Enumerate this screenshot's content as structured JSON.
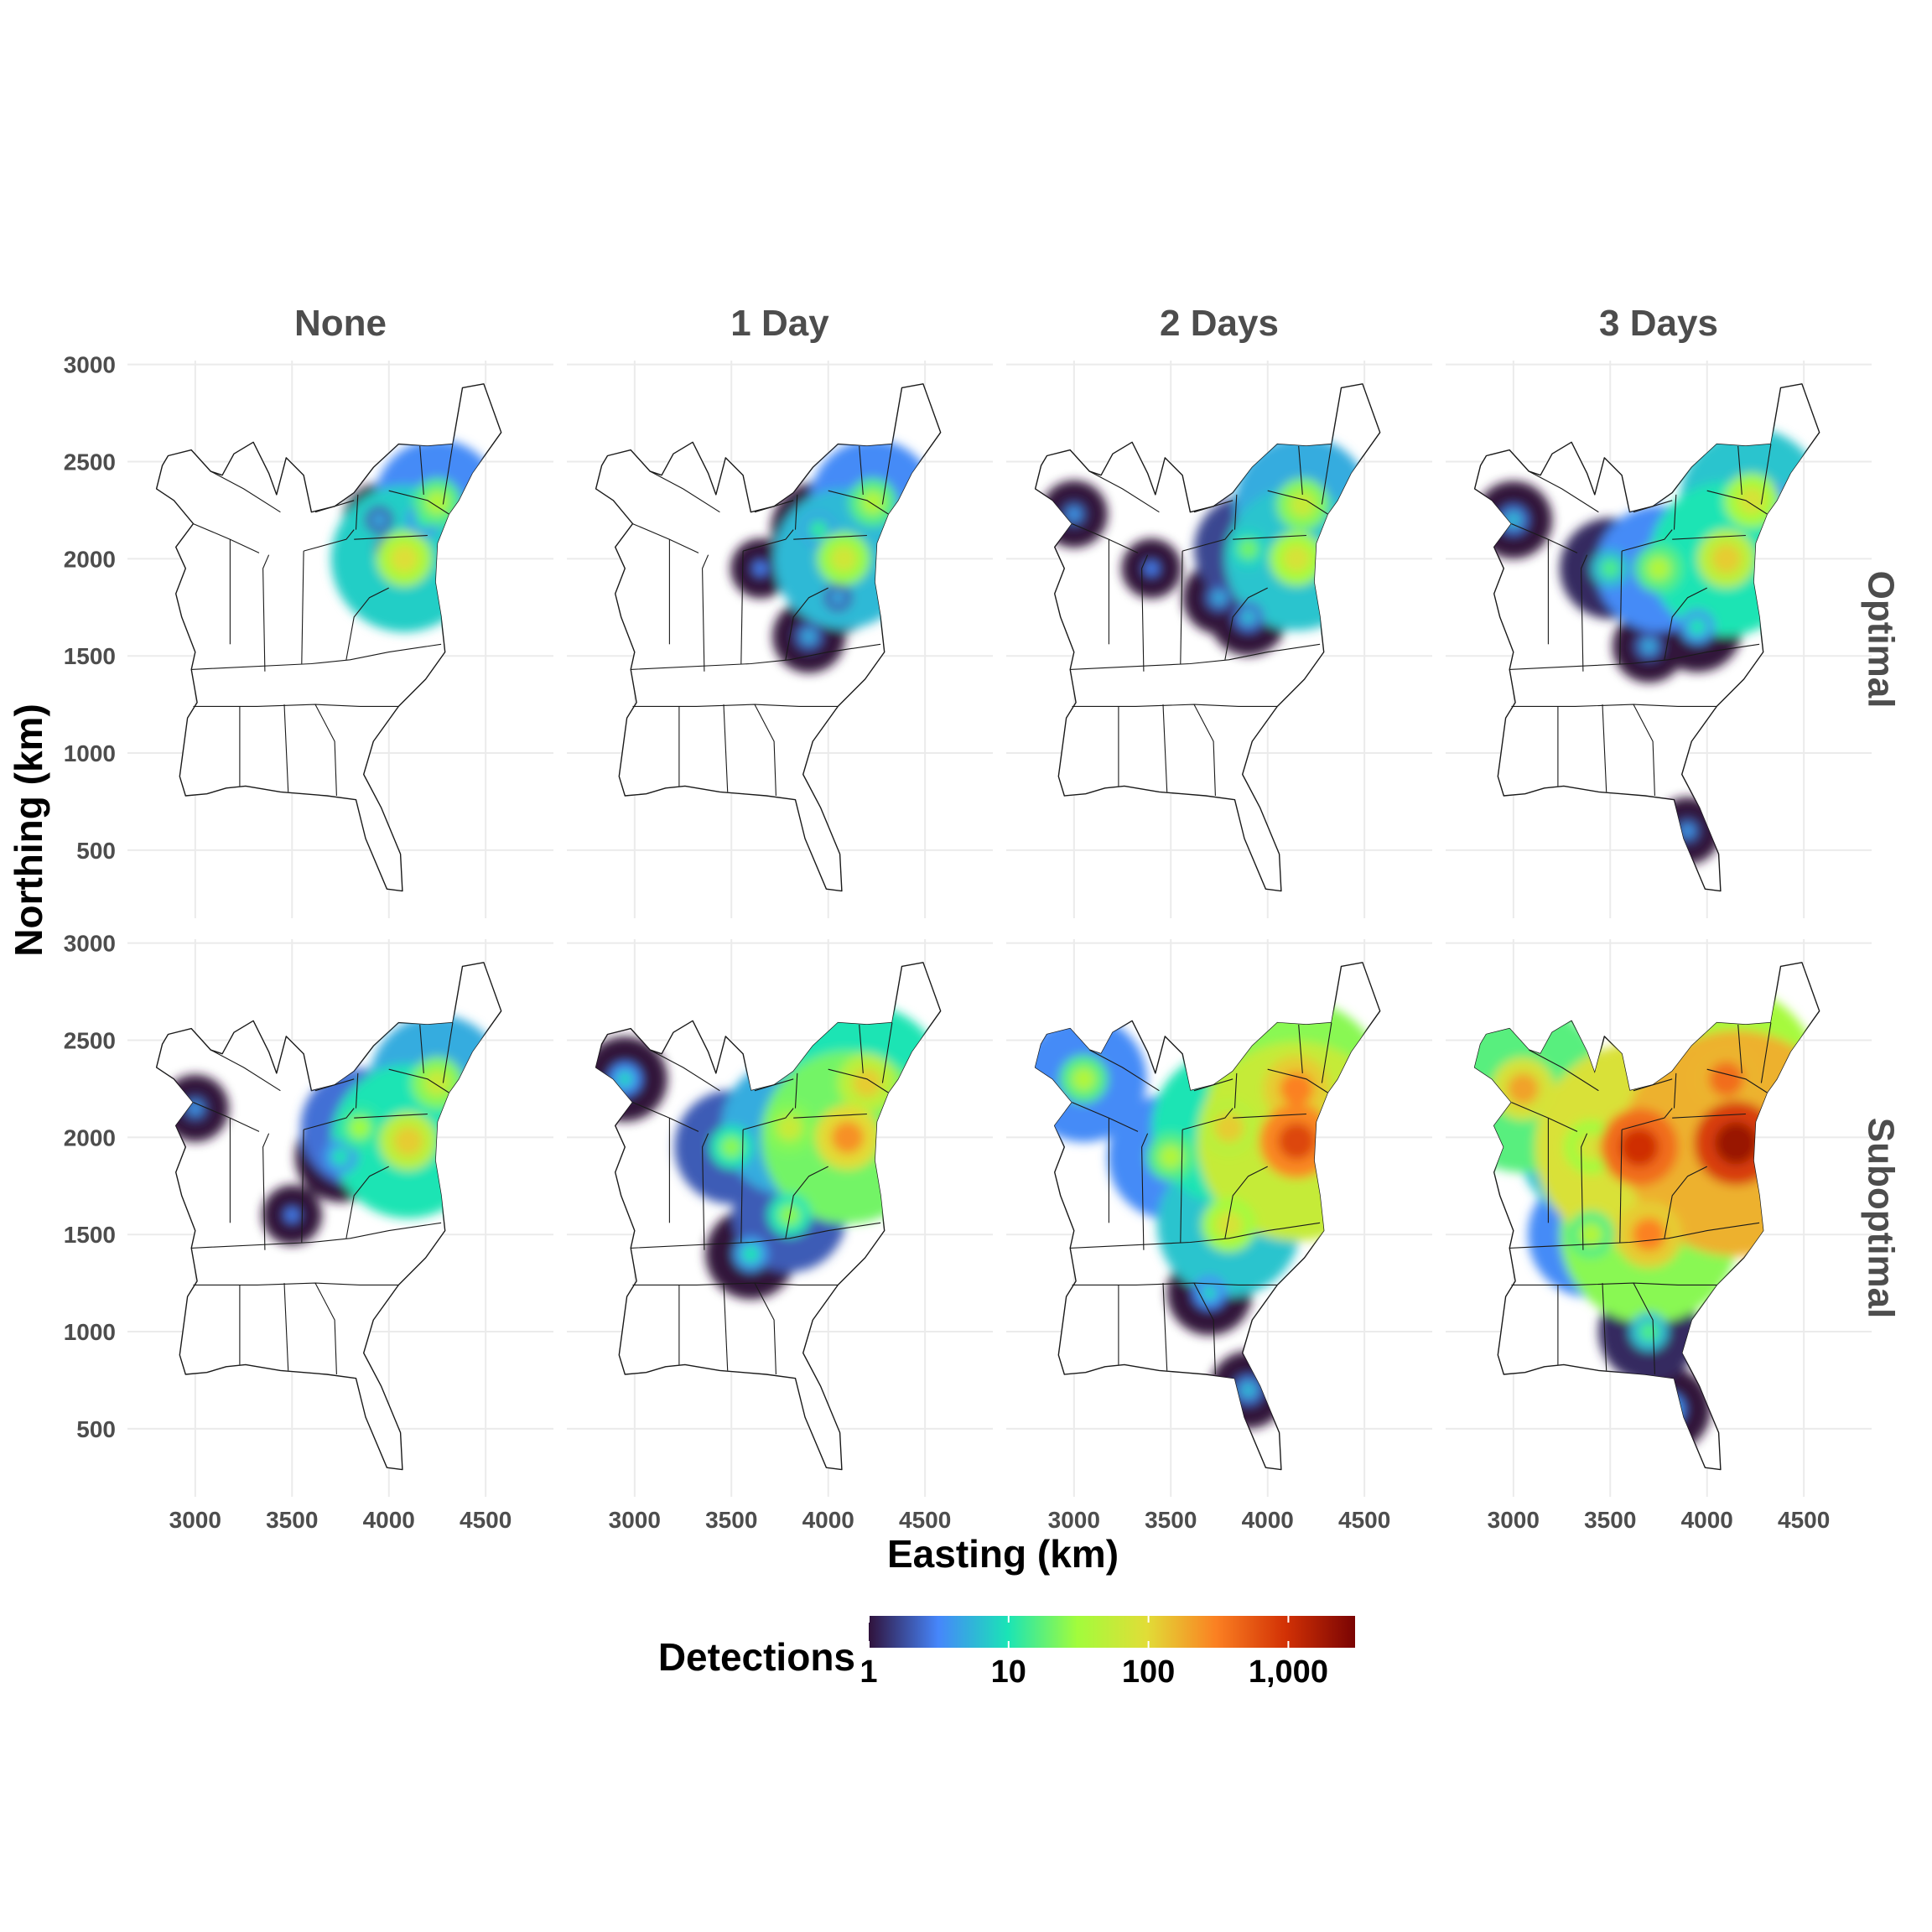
{
  "chart_data": {
    "type": "heatmap",
    "facet_columns": [
      "None",
      "1 Day",
      "2 Days",
      "3 Days"
    ],
    "facet_rows": [
      "Optimal",
      "Suboptimal"
    ],
    "xlabel": "Easting (km)",
    "ylabel": "Northing (km)",
    "xlim": [
      2650,
      4850
    ],
    "ylim": [
      150,
      3020
    ],
    "x_ticks": [
      3000,
      3500,
      4000,
      4500
    ],
    "x_tick_labels": [
      "3000",
      "3500",
      "4000",
      "4500"
    ],
    "y_ticks": [
      500,
      1000,
      1500,
      2000,
      2500,
      3000
    ],
    "y_tick_labels": [
      "500",
      "1000",
      "1500",
      "2000",
      "2500",
      "3000"
    ],
    "grid": true,
    "legend": {
      "title": "Detections",
      "position": "bottom",
      "scale": "log10",
      "range": [
        1,
        3000
      ],
      "ticks": [
        1,
        10,
        100,
        1000
      ],
      "tick_labels": [
        "1",
        "10",
        "100",
        "1,000"
      ],
      "colors": [
        "#30123b",
        "#4686fb",
        "#1ae4b6",
        "#a2fc3c",
        "#e1dd37",
        "#fb8022",
        "#d23105",
        "#7a0403"
      ]
    },
    "panels": [
      {
        "column": "None",
        "row": "Optimal",
        "hotspots": [
          {
            "x": 4250,
            "y": 2290,
            "detections": 40
          },
          {
            "x": 4080,
            "y": 2000,
            "detections": 90
          },
          {
            "x": 4180,
            "y": 2200,
            "detections": 10
          },
          {
            "x": 3950,
            "y": 2200,
            "detections": 5
          },
          {
            "x": 4000,
            "y": 2050,
            "detections": 5
          }
        ]
      },
      {
        "column": "1 Day",
        "row": "Optimal",
        "hotspots": [
          {
            "x": 4230,
            "y": 2290,
            "detections": 40
          },
          {
            "x": 4080,
            "y": 2000,
            "detections": 70
          },
          {
            "x": 3950,
            "y": 2150,
            "detections": 12
          },
          {
            "x": 4050,
            "y": 1800,
            "detections": 5
          },
          {
            "x": 3900,
            "y": 1600,
            "detections": 5
          },
          {
            "x": 3650,
            "y": 1950,
            "detections": 3
          }
        ]
      },
      {
        "column": "2 Days",
        "row": "Optimal",
        "hotspots": [
          {
            "x": 4180,
            "y": 2280,
            "detections": 60
          },
          {
            "x": 4150,
            "y": 2000,
            "detections": 80
          },
          {
            "x": 3900,
            "y": 2050,
            "detections": 20
          },
          {
            "x": 3900,
            "y": 1700,
            "detections": 6
          },
          {
            "x": 3750,
            "y": 1800,
            "detections": 5
          },
          {
            "x": 3000,
            "y": 2230,
            "detections": 4
          },
          {
            "x": 3400,
            "y": 1950,
            "detections": 3
          }
        ]
      },
      {
        "column": "3 Days",
        "row": "Optimal",
        "hotspots": [
          {
            "x": 4230,
            "y": 2300,
            "detections": 80
          },
          {
            "x": 4100,
            "y": 2000,
            "detections": 120
          },
          {
            "x": 3750,
            "y": 1950,
            "detections": 40
          },
          {
            "x": 3500,
            "y": 1950,
            "detections": 15
          },
          {
            "x": 3950,
            "y": 1650,
            "detections": 10
          },
          {
            "x": 3000,
            "y": 2200,
            "detections": 6
          },
          {
            "x": 3700,
            "y": 1550,
            "detections": 5
          },
          {
            "x": 3900,
            "y": 600,
            "detections": 4
          },
          {
            "x": 4350,
            "y": 2300,
            "detections": 8
          }
        ]
      },
      {
        "column": "None",
        "row": "Suboptimal",
        "hotspots": [
          {
            "x": 4250,
            "y": 2280,
            "detections": 60
          },
          {
            "x": 4100,
            "y": 1980,
            "detections": 120
          },
          {
            "x": 3850,
            "y": 2050,
            "detections": 30
          },
          {
            "x": 3750,
            "y": 1900,
            "detections": 10
          },
          {
            "x": 3000,
            "y": 2150,
            "detections": 4
          },
          {
            "x": 3500,
            "y": 1600,
            "detections": 3
          }
        ]
      },
      {
        "column": "1 Day",
        "row": "Suboptimal",
        "hotspots": [
          {
            "x": 4100,
            "y": 2000,
            "detections": 250
          },
          {
            "x": 4200,
            "y": 2280,
            "detections": 120
          },
          {
            "x": 3800,
            "y": 2050,
            "detections": 60
          },
          {
            "x": 3500,
            "y": 1950,
            "detections": 25
          },
          {
            "x": 3800,
            "y": 1600,
            "detections": 25
          },
          {
            "x": 2950,
            "y": 2300,
            "detections": 8
          },
          {
            "x": 3600,
            "y": 1400,
            "detections": 10
          }
        ]
      },
      {
        "column": "2 Days",
        "row": "Suboptimal",
        "hotspots": [
          {
            "x": 4150,
            "y": 1980,
            "detections": 700
          },
          {
            "x": 4150,
            "y": 2250,
            "detections": 300
          },
          {
            "x": 3800,
            "y": 2050,
            "detections": 120
          },
          {
            "x": 3050,
            "y": 2300,
            "detections": 40
          },
          {
            "x": 3500,
            "y": 1900,
            "detections": 40
          },
          {
            "x": 3800,
            "y": 1550,
            "detections": 80
          },
          {
            "x": 3700,
            "y": 1200,
            "detections": 8
          },
          {
            "x": 3900,
            "y": 700,
            "detections": 6
          }
        ]
      },
      {
        "column": "3 Days",
        "row": "Suboptimal",
        "hotspots": [
          {
            "x": 4150,
            "y": 1970,
            "detections": 2000
          },
          {
            "x": 3650,
            "y": 1950,
            "detections": 1000
          },
          {
            "x": 4100,
            "y": 2300,
            "detections": 400
          },
          {
            "x": 3050,
            "y": 2250,
            "detections": 200
          },
          {
            "x": 3700,
            "y": 1500,
            "detections": 300
          },
          {
            "x": 3400,
            "y": 1950,
            "detections": 80
          },
          {
            "x": 3400,
            "y": 1500,
            "detections": 40
          },
          {
            "x": 3700,
            "y": 1000,
            "detections": 15
          },
          {
            "x": 3800,
            "y": 600,
            "detections": 8
          }
        ]
      }
    ]
  }
}
